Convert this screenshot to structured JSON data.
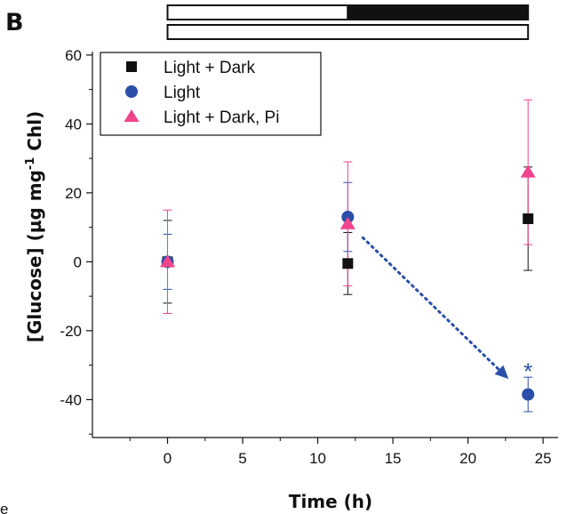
{
  "panel_label": "B",
  "corner_text": "e",
  "chart_data": {
    "type": "scatter",
    "xlabel": "Time (h)",
    "ylabel_main": "[Glucose] (µg mg",
    "ylabel_sup": "-1",
    "ylabel_tail": " Chl)",
    "xlim": [
      -5,
      26
    ],
    "ylim": [
      -51,
      61
    ],
    "xticks": [
      0,
      5,
      10,
      15,
      20,
      25
    ],
    "yticks": [
      -40,
      -20,
      0,
      20,
      40,
      60
    ],
    "legend_position": "top-left",
    "grid": false,
    "light_dark_bars": [
      {
        "segments": [
          {
            "from": 0,
            "to": 12,
            "phase": "light"
          },
          {
            "from": 12,
            "to": 24,
            "phase": "dark"
          }
        ]
      },
      {
        "segments": [
          {
            "from": 0,
            "to": 24,
            "phase": "light"
          }
        ]
      }
    ],
    "series": [
      {
        "name": "Light + Dark",
        "marker": "square",
        "color": "#111111",
        "points": [
          {
            "x": 0,
            "y": 0,
            "err": 12
          },
          {
            "x": 12,
            "y": -0.5,
            "err": 9
          },
          {
            "x": 24,
            "y": 12.5,
            "err": 15
          }
        ]
      },
      {
        "name": "Light",
        "marker": "circle",
        "color": "#2a4fa8",
        "points": [
          {
            "x": 0,
            "y": 0,
            "err": 8
          },
          {
            "x": 12,
            "y": 13,
            "err": 10
          },
          {
            "x": 24,
            "y": -38.5,
            "err": 5
          }
        ]
      },
      {
        "name": "Light + Dark, Pi",
        "marker": "triangle",
        "color": "#f0448c",
        "points": [
          {
            "x": 0,
            "y": 0,
            "err": 15
          },
          {
            "x": 12,
            "y": 11,
            "err": 18
          },
          {
            "x": 24,
            "y": 26,
            "err": 21
          }
        ]
      }
    ],
    "annotations": [
      {
        "type": "dotted-arrow",
        "from": {
          "x": 13,
          "y": 7
        },
        "to": {
          "x": 22.7,
          "y": -34
        },
        "color": "#2a4fa8"
      },
      {
        "type": "text",
        "text": "*",
        "x": 24,
        "y": -31,
        "color": "#2a4fa8"
      }
    ]
  }
}
